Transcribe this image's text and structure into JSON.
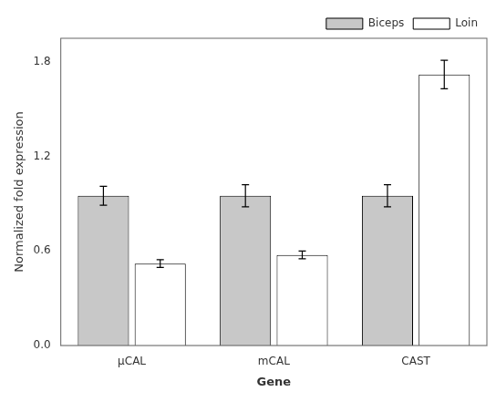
{
  "chart_data": {
    "type": "bar",
    "categories": [
      "μCAL",
      "mCAL",
      "CAST"
    ],
    "series": [
      {
        "name": "Biceps",
        "color": "#c8c8c8",
        "values": [
          0.95,
          0.95,
          0.95
        ],
        "errors": [
          0.06,
          0.07,
          0.07
        ]
      },
      {
        "name": "Loin",
        "color": "#ffffff",
        "values": [
          0.52,
          0.575,
          1.72
        ],
        "errors": [
          0.025,
          0.025,
          0.09
        ]
      }
    ],
    "xlabel": "Gene",
    "ylabel": "Normalized fold expression",
    "ylim": [
      0.0,
      1.95
    ],
    "yticks": [
      {
        "value": 0.0,
        "label": "0.0"
      },
      {
        "value": 0.6,
        "label": "0.6"
      },
      {
        "value": 1.2,
        "label": "1.2"
      },
      {
        "value": 1.8,
        "label": "1.8"
      }
    ],
    "grid": false,
    "legend": "upper right"
  }
}
